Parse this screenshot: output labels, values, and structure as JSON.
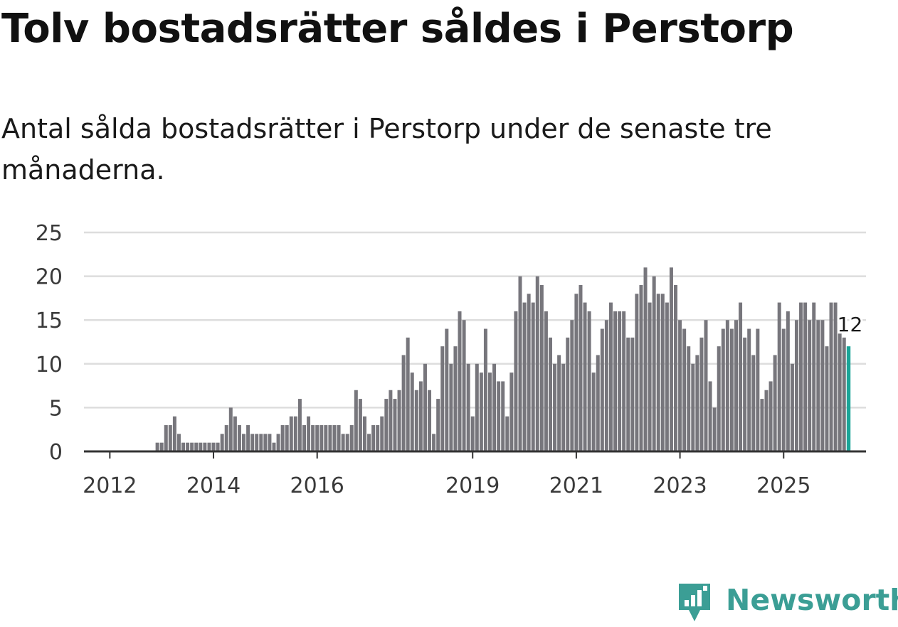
{
  "title": "Tolv bostadsrätter såldes i Perstorp",
  "subtitle": "Antal sålda bostadsrätter i Perstorp under de senaste tre månaderna.",
  "brand": "Newsworthy",
  "colors": {
    "bar": "#77767c",
    "highlight": "#1ba598",
    "grid": "#dddddd",
    "axis": "#333333",
    "brand": "#3b9e95"
  },
  "chart_data": {
    "type": "bar",
    "title": "Tolv bostadsrätter såldes i Perstorp",
    "xlabel": "",
    "ylabel": "",
    "ylim": [
      0,
      25
    ],
    "y_ticks": [
      0,
      5,
      10,
      15,
      20,
      25
    ],
    "x_ticks": [
      {
        "label": "2012",
        "index": 5
      },
      {
        "label": "2014",
        "index": 29
      },
      {
        "label": "2016",
        "index": 53
      },
      {
        "label": "2019",
        "index": 89
      },
      {
        "label": "2021",
        "index": 113
      },
      {
        "label": "2023",
        "index": 137
      },
      {
        "label": "2025",
        "index": 161
      }
    ],
    "start": "2011-08",
    "end": "2025-07",
    "series": [
      {
        "name": "Antal sålda bostadsrätter",
        "values": [
          0,
          0,
          0,
          0,
          0,
          0,
          0,
          0,
          0,
          0,
          0,
          0,
          0,
          0,
          0,
          0,
          1,
          1,
          3,
          3,
          4,
          2,
          1,
          1,
          1,
          1,
          1,
          1,
          1,
          1,
          1,
          2,
          3,
          5,
          4,
          3,
          2,
          3,
          2,
          2,
          2,
          2,
          2,
          1,
          2,
          3,
          3,
          4,
          4,
          6,
          3,
          4,
          3,
          3,
          3,
          3,
          3,
          3,
          3,
          2,
          2,
          3,
          7,
          6,
          4,
          2,
          3,
          3,
          4,
          6,
          7,
          6,
          7,
          11,
          13,
          9,
          7,
          8,
          10,
          7,
          2,
          6,
          12,
          14,
          10,
          12,
          16,
          15,
          10,
          4,
          10,
          9,
          14,
          9,
          10,
          8,
          8,
          4,
          9,
          16,
          20,
          17,
          18,
          17,
          20,
          19,
          16,
          13,
          10,
          11,
          10,
          13,
          15,
          18,
          19,
          17,
          16,
          9,
          11,
          14,
          15,
          17,
          16,
          16,
          16,
          13,
          13,
          18,
          19,
          21,
          17,
          20,
          18,
          18,
          17,
          21,
          19,
          15,
          14,
          12,
          10,
          11,
          13,
          15,
          8,
          5,
          12,
          14,
          15,
          14,
          15,
          17,
          13,
          14,
          11,
          14,
          6,
          7,
          8,
          11,
          17,
          14,
          16,
          10,
          15,
          17,
          17,
          15,
          17,
          15,
          15,
          12,
          17,
          17,
          14,
          13,
          12
        ]
      }
    ],
    "highlight_last": true,
    "last_value_label": "12"
  }
}
